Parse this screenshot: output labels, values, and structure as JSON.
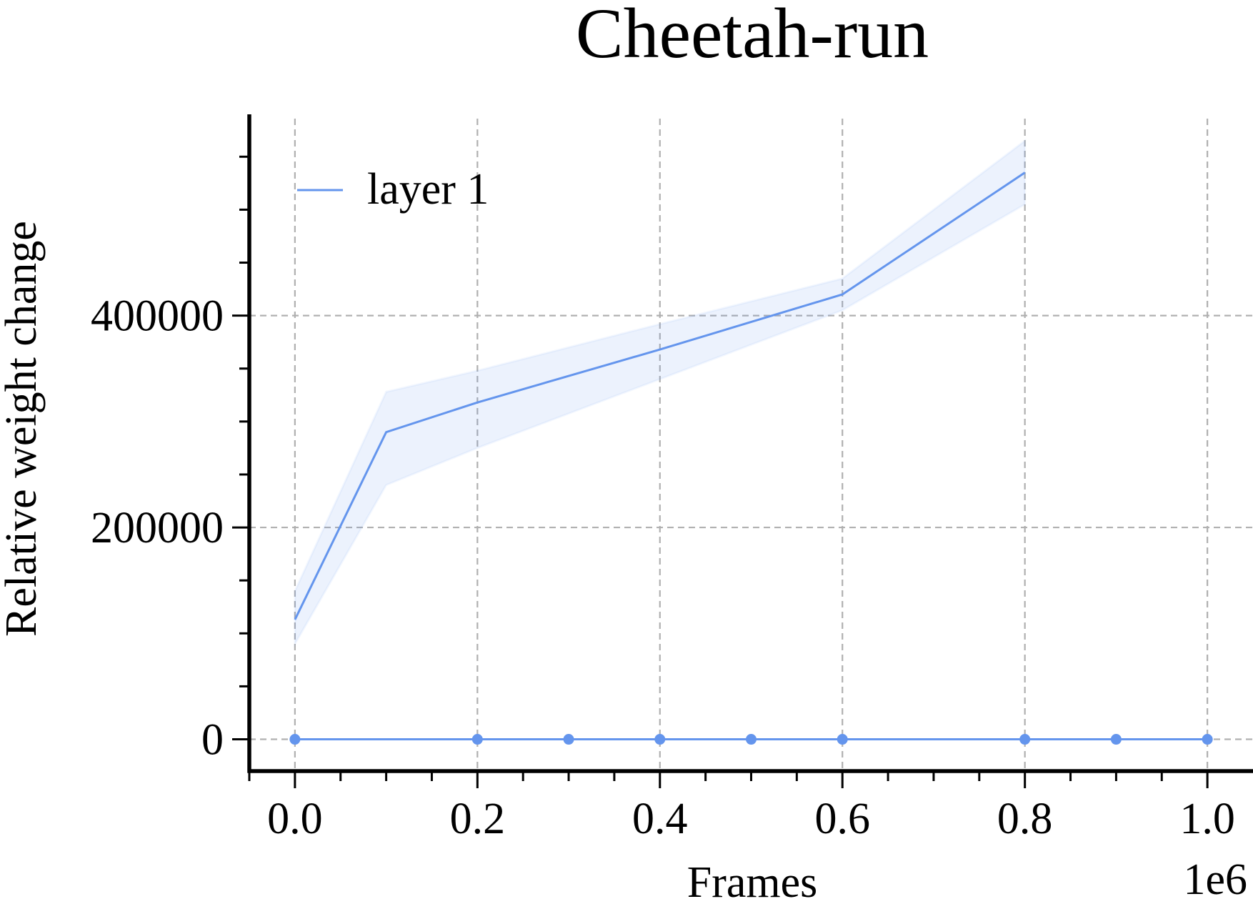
{
  "chart_data": {
    "type": "line",
    "title": "Cheetah-run",
    "xlabel": "Frames",
    "ylabel": "Relative weight change",
    "x_offset_label": "1e6",
    "xlim": [
      -0.05,
      1.05
    ],
    "ylim": [
      -30000,
      590000
    ],
    "x_ticks": [
      0.0,
      0.2,
      0.4,
      0.6,
      0.8,
      1.0
    ],
    "x_tick_labels": [
      "0.0",
      "0.2",
      "0.4",
      "0.6",
      "0.8",
      "1.0"
    ],
    "x_minor_step": 0.05,
    "y_ticks": [
      0,
      200000,
      400000
    ],
    "y_tick_labels": [
      "0",
      "200000",
      "400000"
    ],
    "y_minor_step": 50000,
    "grid": true,
    "legend": {
      "placement": "top-left",
      "entries": [
        "layer 1"
      ]
    },
    "colors": {
      "series": "#6495ED",
      "band": "#6495ED"
    },
    "series": [
      {
        "name": "layer 1",
        "x": [
          0.0,
          0.1,
          0.2,
          0.4,
          0.6,
          0.8
        ],
        "y": [
          113000,
          290000,
          318000,
          368000,
          420000,
          535000
        ],
        "y_lower": [
          90000,
          240000,
          275000,
          340000,
          405000,
          505000
        ],
        "y_upper": [
          140000,
          328000,
          348000,
          392000,
          435000,
          565000
        ]
      },
      {
        "name": "",
        "x": [
          0.0,
          0.2,
          0.3,
          0.4,
          0.5,
          0.6,
          0.8,
          0.9,
          1.0
        ],
        "y": [
          0,
          0,
          0,
          0,
          0,
          0,
          0,
          0,
          0
        ],
        "markers": true
      }
    ]
  }
}
